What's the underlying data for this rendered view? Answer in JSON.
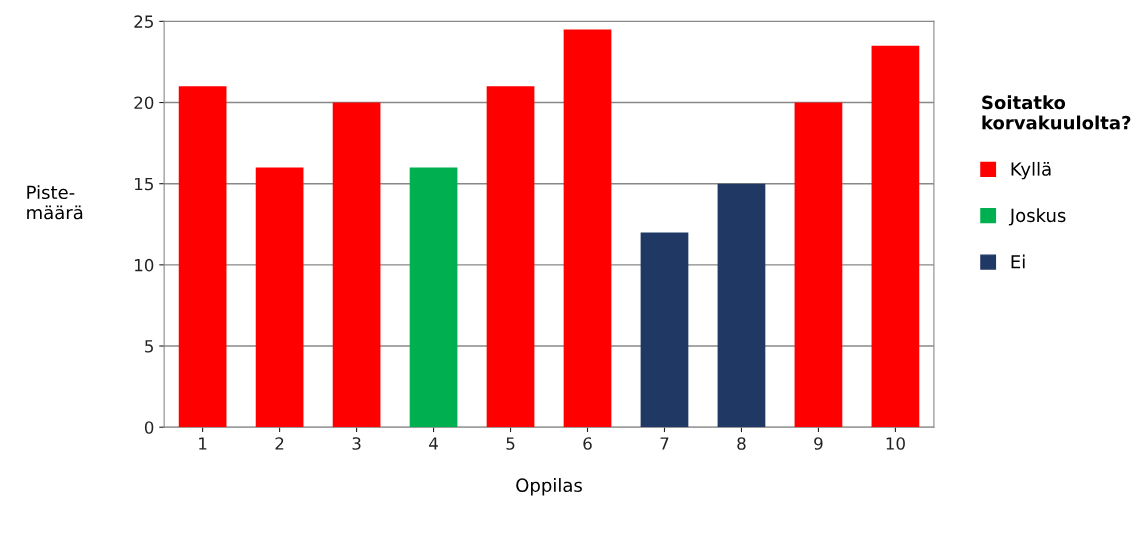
{
  "chart_data": {
    "type": "bar",
    "xlabel": "Oppilas",
    "ylabel": "Piste-\nmäärä",
    "legend_title": "Soitatko\nkorvakuulolta?",
    "categories": [
      "1",
      "2",
      "3",
      "4",
      "5",
      "6",
      "7",
      "8",
      "9",
      "10"
    ],
    "series": [
      {
        "name": "Kyllä",
        "color": "#ff0000",
        "values": [
          21,
          16,
          20,
          null,
          21,
          24.5,
          null,
          null,
          20,
          23.5
        ]
      },
      {
        "name": "Joskus",
        "color": "#00b050",
        "values": [
          null,
          null,
          null,
          16,
          null,
          null,
          null,
          null,
          null,
          null
        ]
      },
      {
        "name": "Ei",
        "color": "#1f3864",
        "values": [
          null,
          null,
          null,
          null,
          null,
          null,
          12,
          15,
          null,
          null
        ]
      }
    ],
    "ylim": [
      0,
      25
    ],
    "yticks": [
      0,
      5,
      10,
      15,
      20,
      25
    ],
    "grid": "y",
    "legend": "right"
  }
}
